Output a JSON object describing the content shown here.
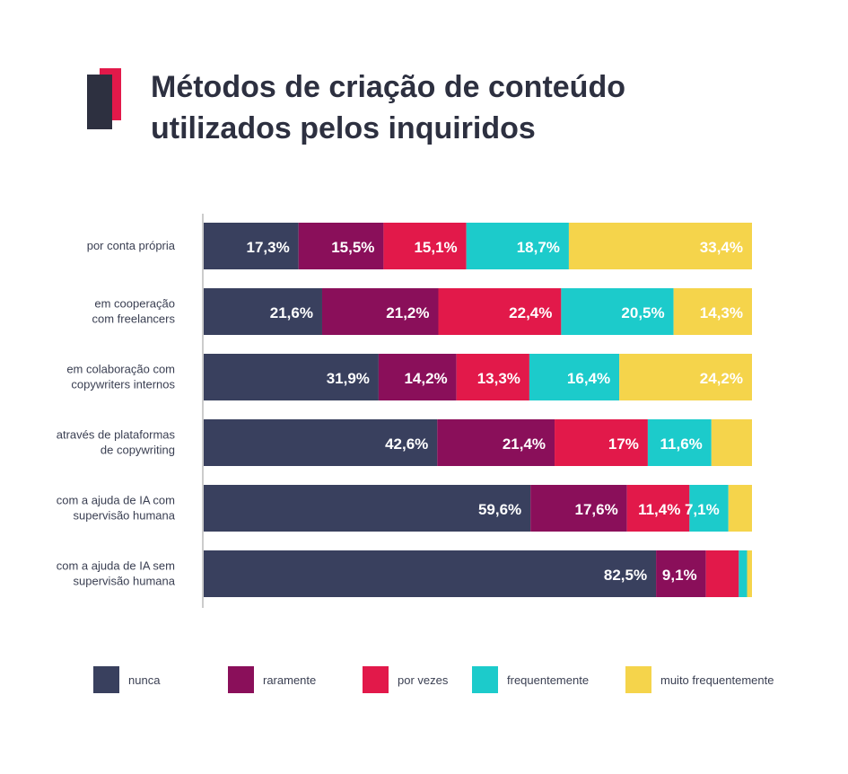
{
  "title": {
    "line1": "Métodos de criação de conteúdo",
    "line2": "utilizados pelos inquiridos"
  },
  "colors": {
    "title": "#2d3040",
    "logo_front": "#2d3040",
    "logo_back": "#e2194a"
  },
  "chart_data": {
    "type": "bar",
    "orientation": "horizontal",
    "stacked": true,
    "normalized_to_100": true,
    "xlim": [
      0,
      100
    ],
    "grid": false,
    "legend_position": "bottom",
    "categories": [
      [
        "por conta própria"
      ],
      [
        "em cooperação",
        "com freelancers"
      ],
      [
        "em colaboração com",
        "copywriters internos"
      ],
      [
        "através de plataformas",
        "de copywriting"
      ],
      [
        "com a ajuda de IA com",
        "supervisão humana"
      ],
      [
        "com a ajuda de IA sem",
        "supervisão humana"
      ]
    ],
    "series": [
      {
        "name": "nunca",
        "color": "#39405e",
        "values": [
          17.3,
          21.6,
          31.9,
          42.6,
          59.6,
          82.5
        ],
        "labels": [
          "17,3%",
          "21,6%",
          "31,9%",
          "42,6%",
          "59,6%",
          "82,5%"
        ]
      },
      {
        "name": "raramente",
        "color": "#8a0f5a",
        "values": [
          15.5,
          21.2,
          14.2,
          21.4,
          17.6,
          9.1
        ],
        "labels": [
          "15,5%",
          "21,2%",
          "14,2%",
          "21,4%",
          "17,6%",
          "9,1%"
        ]
      },
      {
        "name": "por vezes",
        "color": "#e2194a",
        "values": [
          15.1,
          22.4,
          13.3,
          17.0,
          11.4,
          6.0
        ],
        "labels": [
          "15,1%",
          "22,4%",
          "13,3%",
          "17%",
          "11,4%",
          ""
        ]
      },
      {
        "name": "frequentemente",
        "color": "#1ccbcb",
        "values": [
          18.7,
          20.5,
          16.4,
          11.6,
          7.1,
          1.5
        ],
        "labels": [
          "18,7%",
          "20,5%",
          "16,4%",
          "11,6%",
          "7,1%",
          ""
        ]
      },
      {
        "name": "muito frequentemente",
        "color": "#f5d44b",
        "values": [
          33.4,
          14.3,
          24.2,
          7.4,
          4.3,
          0.9
        ],
        "labels": [
          "33,4%",
          "14,3%",
          "24,2%",
          "",
          "",
          ""
        ]
      }
    ]
  }
}
